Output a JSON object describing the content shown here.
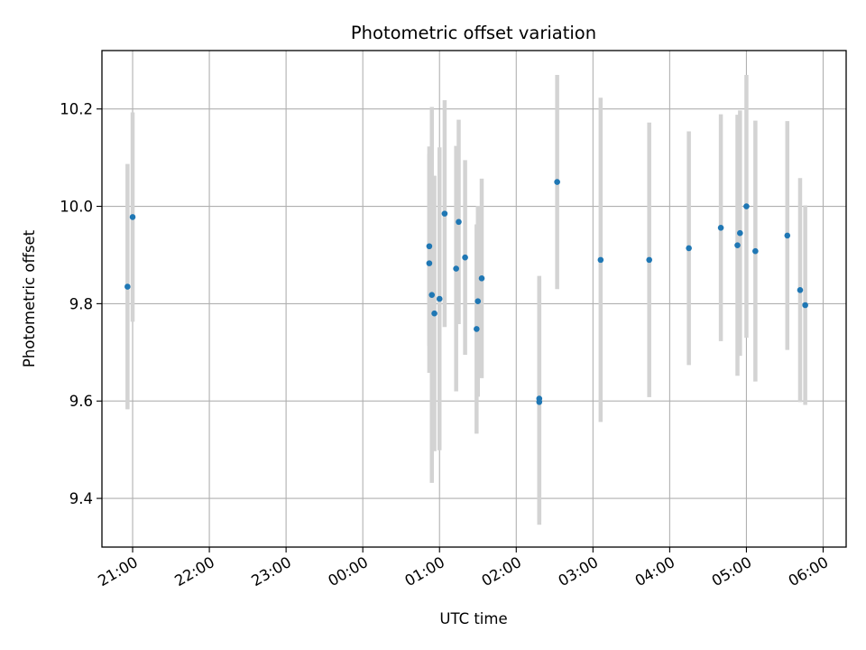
{
  "chart_data": {
    "type": "scatter",
    "title": "Photometric offset variation",
    "xlabel": "UTC time",
    "ylabel": "Photometric offset",
    "xlim": [
      "2023-01-01T20:36",
      "2023-01-02T06:18"
    ],
    "ylim": [
      9.3,
      10.32
    ],
    "grid": true,
    "x_ticks": [
      {
        "t": "2023-01-01T21:00",
        "label": "21:00"
      },
      {
        "t": "2023-01-01T22:00",
        "label": "22:00"
      },
      {
        "t": "2023-01-01T23:00",
        "label": "23:00"
      },
      {
        "t": "2023-01-02T00:00",
        "label": "00:00"
      },
      {
        "t": "2023-01-02T01:00",
        "label": "01:00"
      },
      {
        "t": "2023-01-02T02:00",
        "label": "02:00"
      },
      {
        "t": "2023-01-02T03:00",
        "label": "03:00"
      },
      {
        "t": "2023-01-02T04:00",
        "label": "04:00"
      },
      {
        "t": "2023-01-02T05:00",
        "label": "05:00"
      },
      {
        "t": "2023-01-02T06:00",
        "label": "06:00"
      }
    ],
    "y_ticks": [
      {
        "v": 9.4,
        "label": "9.4"
      },
      {
        "v": 9.6,
        "label": "9.6"
      },
      {
        "v": 9.8,
        "label": "9.8"
      },
      {
        "v": 10.0,
        "label": "10.0"
      },
      {
        "v": 10.2,
        "label": "10.2"
      }
    ],
    "marker_color": "#1f77b4",
    "errorbar_color": "#d3d3d3",
    "points": [
      {
        "t": "2023-01-01T20:56",
        "y": 9.835,
        "err": 0.252
      },
      {
        "t": "2023-01-01T21:00",
        "y": 9.978,
        "err": 0.215
      },
      {
        "t": "2023-01-02T00:52",
        "y": 9.883,
        "err": 0.225
      },
      {
        "t": "2023-01-02T00:52",
        "y": 9.918,
        "err": 0.205
      },
      {
        "t": "2023-01-02T00:54",
        "y": 9.818,
        "err": 0.386
      },
      {
        "t": "2023-01-02T00:56",
        "y": 9.78,
        "err": 0.283
      },
      {
        "t": "2023-01-02T01:00",
        "y": 9.81,
        "err": 0.311
      },
      {
        "t": "2023-01-02T01:04",
        "y": 9.985,
        "err": 0.233
      },
      {
        "t": "2023-01-02T01:13",
        "y": 9.872,
        "err": 0.252
      },
      {
        "t": "2023-01-02T01:15",
        "y": 9.968,
        "err": 0.21
      },
      {
        "t": "2023-01-02T01:20",
        "y": 9.895,
        "err": 0.2
      },
      {
        "t": "2023-01-02T01:29",
        "y": 9.748,
        "err": 0.215
      },
      {
        "t": "2023-01-02T01:30",
        "y": 9.805,
        "err": 0.196
      },
      {
        "t": "2023-01-02T01:33",
        "y": 9.852,
        "err": 0.205
      },
      {
        "t": "2023-01-02T02:18",
        "y": 9.605,
        "err": 0.252
      },
      {
        "t": "2023-01-02T02:18",
        "y": 9.598,
        "err": 0.252
      },
      {
        "t": "2023-01-02T02:32",
        "y": 10.05,
        "err": 0.22
      },
      {
        "t": "2023-01-02T03:06",
        "y": 9.89,
        "err": 0.333
      },
      {
        "t": "2023-01-02T03:44",
        "y": 9.89,
        "err": 0.282
      },
      {
        "t": "2023-01-02T04:15",
        "y": 9.914,
        "err": 0.24
      },
      {
        "t": "2023-01-02T04:40",
        "y": 9.956,
        "err": 0.233
      },
      {
        "t": "2023-01-02T04:53",
        "y": 9.92,
        "err": 0.268
      },
      {
        "t": "2023-01-02T04:55",
        "y": 9.945,
        "err": 0.252
      },
      {
        "t": "2023-01-02T05:00",
        "y": 10.0,
        "err": 0.27
      },
      {
        "t": "2023-01-02T05:07",
        "y": 9.908,
        "err": 0.268
      },
      {
        "t": "2023-01-02T05:32",
        "y": 9.94,
        "err": 0.235
      },
      {
        "t": "2023-01-02T05:42",
        "y": 9.828,
        "err": 0.23
      },
      {
        "t": "2023-01-02T05:46",
        "y": 9.797,
        "err": 0.205
      }
    ]
  }
}
